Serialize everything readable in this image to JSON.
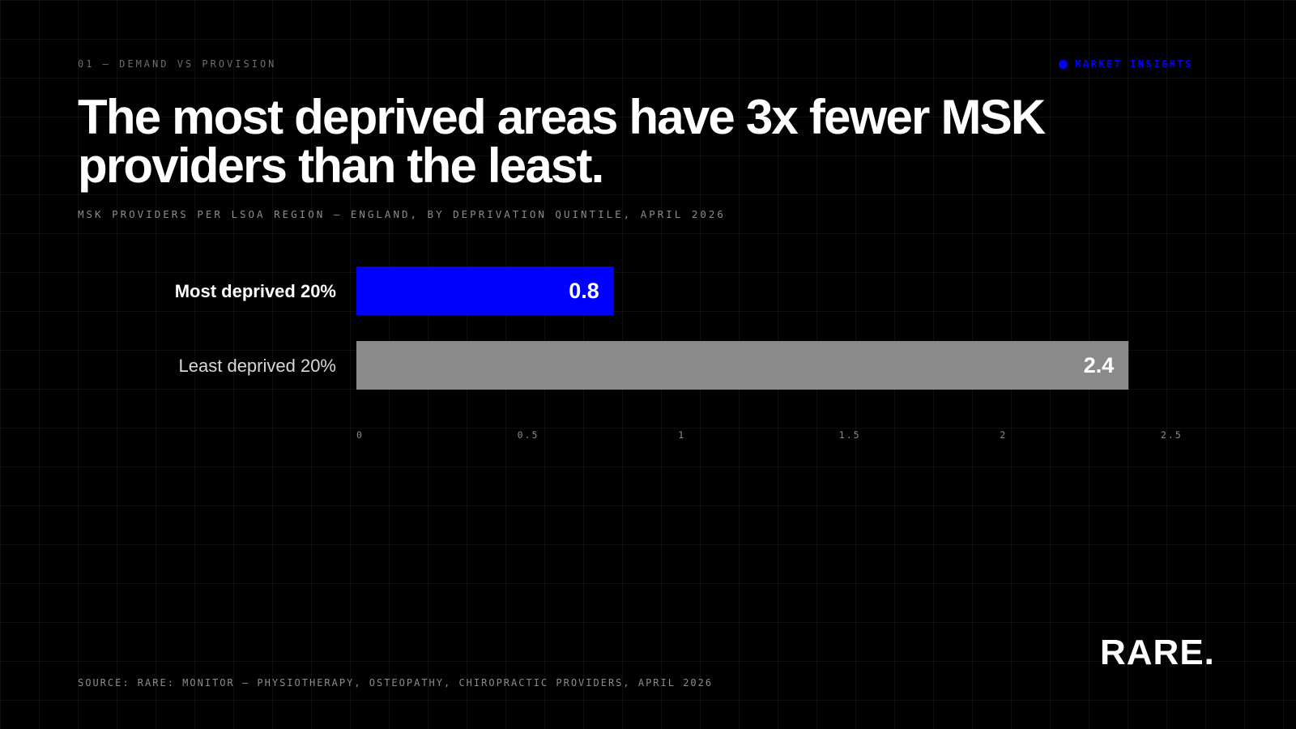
{
  "header": {
    "eyebrow": "01 — DEMAND VS PROVISION",
    "tag_label": "MARKET INSIGHTS",
    "tag_dot_icon": "dot-icon",
    "headline": "The most deprived areas have 3x fewer MSK providers than the least."
  },
  "footer": {
    "source": "SOURCE: RARE: MONITOR — PHYSIOTHERAPY, OSTEOPATHY, CHIROPRACTIC PROVIDERS, APRIL 2026",
    "brand": "RARE."
  },
  "colors": {
    "accent": "#0000ff",
    "bar_secondary": "#8a8a8a",
    "background": "#000000",
    "text_primary": "#ffffff",
    "text_muted": "#8c8c8c"
  },
  "chart_data": {
    "type": "bar",
    "orientation": "horizontal",
    "title": "MSK PROVIDERS PER LSOA REGION — ENGLAND, BY DEPRIVATION QUINTILE, APRIL 2026",
    "categories": [
      "Most deprived 20%",
      "Least deprived 20%"
    ],
    "values": [
      0.8,
      2.4
    ],
    "value_labels": [
      "0.8",
      "2.4"
    ],
    "bar_colors": [
      "#0000ff",
      "#8a8a8a"
    ],
    "xlim": [
      0,
      2.5
    ],
    "x_ticks": [
      "0",
      "0.5",
      "1",
      "1.5",
      "2",
      "2.5"
    ],
    "xlabel": "",
    "ylabel": "",
    "grid": false,
    "legend": "none"
  }
}
